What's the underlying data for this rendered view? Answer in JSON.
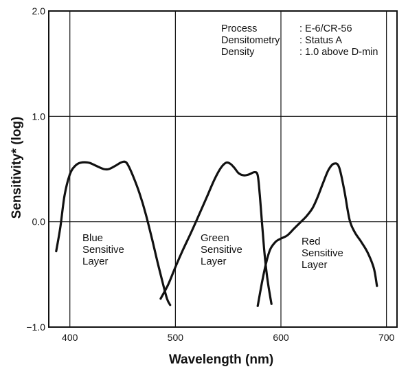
{
  "chart_data": {
    "type": "line",
    "xlabel": "Wavelength (nm)",
    "ylabel": "Sensitivity* (log)",
    "xlim": [
      380,
      710
    ],
    "ylim": [
      -1.0,
      2.0
    ],
    "x_ticks": [
      400,
      500,
      600,
      700
    ],
    "x_tick_labels": [
      "400",
      "500",
      "600",
      "700"
    ],
    "y_ticks": [
      2.0,
      1.0,
      0.0,
      -1.0
    ],
    "y_tick_labels": [
      "2.0",
      "1.0",
      "0.0",
      "−1.0"
    ],
    "grid": true,
    "annotation": {
      "rows": [
        {
          "key": "Process",
          "value": ": E-6/CR-56"
        },
        {
          "key": "Densitometry",
          "value": ": Status A"
        },
        {
          "key": "Density",
          "value": ": 1.0 above D-min"
        }
      ]
    },
    "series": [
      {
        "label_lines": [
          "Blue",
          "Sensitive",
          "Layer"
        ],
        "x": [
          387,
          391,
          395,
          400,
          405,
          410,
          418,
          425,
          432,
          437,
          443,
          448,
          452,
          455,
          460,
          466,
          472,
          478,
          483,
          488,
          492,
          495
        ],
        "y": [
          -0.28,
          -0.05,
          0.25,
          0.45,
          0.53,
          0.56,
          0.56,
          0.53,
          0.5,
          0.5,
          0.53,
          0.56,
          0.57,
          0.54,
          0.43,
          0.27,
          0.07,
          -0.17,
          -0.38,
          -0.58,
          -0.73,
          -0.79
        ]
      },
      {
        "label_lines": [
          "Green",
          "Sensitive",
          "Layer"
        ],
        "x": [
          486,
          493,
          500,
          507,
          515,
          523,
          530,
          537,
          543,
          548,
          552,
          556,
          560,
          565,
          570,
          575,
          578,
          580,
          582,
          584,
          586,
          588,
          590,
          591
        ],
        "y": [
          -0.73,
          -0.6,
          -0.43,
          -0.27,
          -0.1,
          0.08,
          0.24,
          0.4,
          0.51,
          0.56,
          0.55,
          0.51,
          0.46,
          0.44,
          0.45,
          0.47,
          0.44,
          0.25,
          0.0,
          -0.25,
          -0.45,
          -0.6,
          -0.72,
          -0.78
        ]
      },
      {
        "label_lines": [
          "Red",
          "Sensitive",
          "Layer"
        ],
        "x": [
          578,
          582,
          586,
          590,
          595,
          600,
          606,
          612,
          618,
          624,
          630,
          635,
          640,
          645,
          650,
          655,
          660,
          665,
          670,
          676,
          682,
          688,
          691
        ],
        "y": [
          -0.8,
          -0.58,
          -0.39,
          -0.26,
          -0.19,
          -0.16,
          -0.13,
          -0.07,
          -0.01,
          0.05,
          0.13,
          0.24,
          0.37,
          0.49,
          0.55,
          0.52,
          0.3,
          0.02,
          -0.1,
          -0.19,
          -0.29,
          -0.44,
          -0.61
        ]
      }
    ]
  }
}
